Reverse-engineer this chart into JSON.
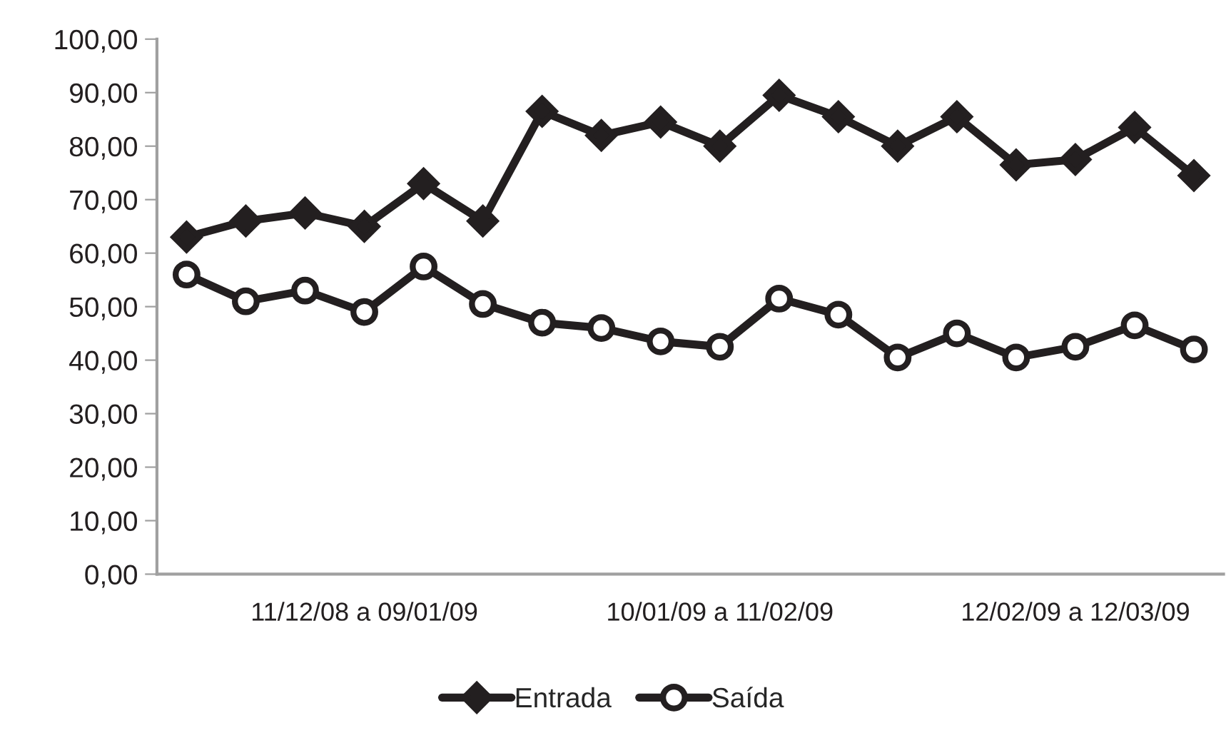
{
  "chart_data": {
    "type": "line",
    "categories": [
      null,
      null,
      null,
      "11/12/08 a 09/01/09",
      null,
      null,
      null,
      null,
      null,
      "10/01/09 a 11/02/09",
      null,
      null,
      null,
      null,
      null,
      "12/02/09 a 12/03/09",
      null,
      null
    ],
    "series": [
      {
        "name": "Entrada",
        "color": "#231f20",
        "marker": "diamond",
        "values": [
          63,
          66,
          67.5,
          65,
          73,
          66,
          86.5,
          82,
          84.5,
          80,
          89.5,
          85.5,
          80,
          85.5,
          76.5,
          77.5,
          83.5,
          74.5
        ]
      },
      {
        "name": "Saída",
        "color": "#231f20",
        "marker": "circle",
        "values": [
          56,
          51,
          53,
          49,
          57.5,
          50.5,
          47,
          46,
          43.5,
          42.5,
          51.5,
          48.5,
          40.5,
          45,
          40.5,
          42.5,
          46.5,
          42
        ]
      }
    ],
    "ylim": [
      0,
      100
    ],
    "yticks": [
      {
        "value": 0,
        "label": "0,00"
      },
      {
        "value": 10,
        "label": "10,00"
      },
      {
        "value": 20,
        "label": "20,00"
      },
      {
        "value": 30,
        "label": "30,00"
      },
      {
        "value": 40,
        "label": "40,00"
      },
      {
        "value": 50,
        "label": "50,00"
      },
      {
        "value": 60,
        "label": "60,00"
      },
      {
        "value": 70,
        "label": "70,00"
      },
      {
        "value": 80,
        "label": "80,00"
      },
      {
        "value": 90,
        "label": "90,00"
      },
      {
        "value": 100,
        "label": "100,00"
      }
    ],
    "grid": false,
    "legend": "bottom",
    "line_style": "solid"
  }
}
